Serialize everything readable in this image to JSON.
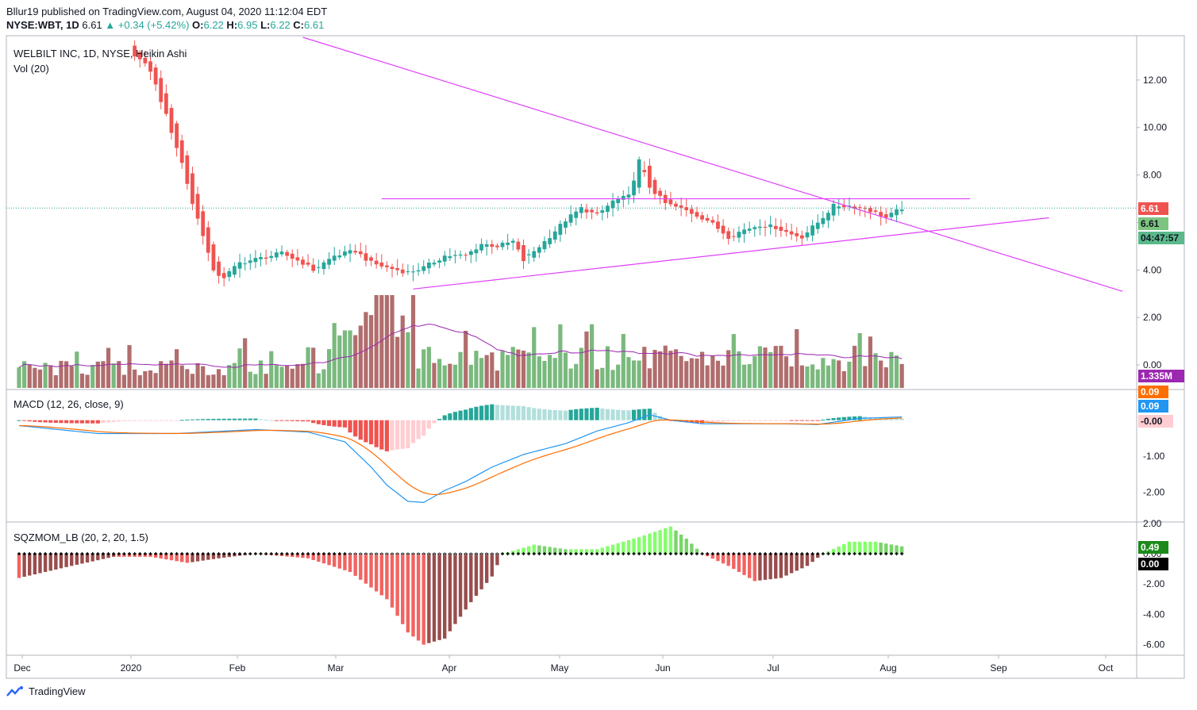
{
  "header": {
    "published": "Bllur19 published on TradingView.com, August 04, 2020 11:12:04 EDT",
    "symbol": "NYSE:WBT, 1D",
    "price": "6.61",
    "change": "▲ +0.34 (+5.42%)",
    "o_label": "O:",
    "o_val": "6.22",
    "h_label": "H:",
    "h_val": "6.95",
    "l_label": "L:",
    "l_val": "6.22",
    "c_label": "C:",
    "c_val": "6.61"
  },
  "legends": {
    "main": "WELBILT INC, 1D, NYSE, Heikin Ashi",
    "vol": "Vol (20)",
    "macd": "MACD (12, 26, close, 9)",
    "sqz": "SQZMOM_LB (20, 2, 20, 1.5)"
  },
  "footer": {
    "brand": "TradingView"
  },
  "colors": {
    "up": "#26a69a",
    "down": "#ef5350",
    "trend": "#e040fb",
    "vol_up": "#7ab97e",
    "vol_down": "#b16d6d",
    "vol_ma": "#9c27b0",
    "macd": "#2196f3",
    "signal": "#ff6d00"
  },
  "chart_data": [
    {
      "type": "candlestick",
      "name": "WELBILT INC",
      "x_ticks": [
        "Dec",
        "2020",
        "Feb",
        "Mar",
        "Apr",
        "May",
        "Jun",
        "Jul",
        "Aug",
        "Sep",
        "Oct"
      ],
      "y_ticks": [
        "12.00",
        "10.00",
        "8.00",
        "6.00",
        "4.00",
        "2.00",
        "0.00"
      ],
      "ylim": [
        -1,
        13.8
      ],
      "last_price": "6.61",
      "price_badges": [
        "6.61",
        "6.61",
        "04:47:57"
      ],
      "close_anchors": [
        [
          0,
          14.5
        ],
        [
          10,
          14.2
        ],
        [
          18,
          13.8
        ],
        [
          21,
          13.3
        ],
        [
          25,
          12.4
        ],
        [
          28,
          10.5
        ],
        [
          31,
          8.5
        ],
        [
          33,
          6.8
        ],
        [
          35,
          5.5
        ],
        [
          37,
          3.9
        ],
        [
          39,
          3.7
        ],
        [
          42,
          4.3
        ],
        [
          46,
          4.5
        ],
        [
          50,
          4.7
        ],
        [
          54,
          4.3
        ],
        [
          56,
          4.0
        ],
        [
          60,
          4.6
        ],
        [
          64,
          4.8
        ],
        [
          67,
          4.3
        ],
        [
          70,
          4.1
        ],
        [
          74,
          3.9
        ],
        [
          77,
          4.1
        ],
        [
          81,
          4.6
        ],
        [
          85,
          4.6
        ],
        [
          88,
          5.1
        ],
        [
          91,
          5.0
        ],
        [
          94,
          5.2
        ],
        [
          96,
          4.4
        ],
        [
          100,
          5.2
        ],
        [
          104,
          6.1
        ],
        [
          107,
          6.6
        ],
        [
          110,
          6.3
        ],
        [
          113,
          6.9
        ],
        [
          116,
          7.1
        ],
        [
          118,
          8.6
        ],
        [
          120,
          7.5
        ],
        [
          123,
          6.8
        ],
        [
          127,
          6.5
        ],
        [
          131,
          6.1
        ],
        [
          135,
          5.4
        ],
        [
          138,
          5.7
        ],
        [
          141,
          5.9
        ],
        [
          144,
          5.8
        ],
        [
          147,
          5.5
        ],
        [
          149,
          5.4
        ],
        [
          152,
          6.0
        ],
        [
          155,
          6.7
        ],
        [
          158,
          6.7
        ],
        [
          161,
          6.6
        ],
        [
          163,
          6.4
        ],
        [
          165,
          6.2
        ],
        [
          168,
          6.61
        ]
      ],
      "trendlines": [
        {
          "from": [
            54,
            13.8
          ],
          "to": [
            210,
            3.1
          ]
        },
        {
          "from": [
            69,
            7.0
          ],
          "to": [
            181,
            7.0
          ]
        },
        {
          "from": [
            75,
            3.2
          ],
          "to": [
            196,
            6.2
          ]
        }
      ]
    },
    {
      "type": "bar",
      "name": "Vol (20)",
      "badge": "1.335M"
    },
    {
      "type": "line",
      "name": "MACD (12, 26, close, 9)",
      "y_ticks": [
        "-1.00",
        "-2.00"
      ],
      "ylim": [
        -2.8,
        0.85
      ],
      "macd_anchors": [
        [
          0,
          -0.15
        ],
        [
          15,
          -0.37
        ],
        [
          30,
          -0.37
        ],
        [
          45,
          -0.26
        ],
        [
          55,
          -0.33
        ],
        [
          62,
          -0.6
        ],
        [
          67,
          -1.3
        ],
        [
          70,
          -1.8
        ],
        [
          74,
          -2.25
        ],
        [
          77,
          -2.28
        ],
        [
          81,
          -1.95
        ],
        [
          85,
          -1.7
        ],
        [
          90,
          -1.3
        ],
        [
          96,
          -0.95
        ],
        [
          104,
          -0.65
        ],
        [
          110,
          -0.3
        ],
        [
          116,
          -0.07
        ],
        [
          120,
          0.15
        ],
        [
          124,
          0.0
        ],
        [
          130,
          -0.1
        ],
        [
          140,
          -0.1
        ],
        [
          146,
          -0.1
        ],
        [
          152,
          -0.12
        ],
        [
          160,
          0.05
        ],
        [
          168,
          0.09
        ]
      ],
      "badges": [
        "0.09",
        "0.09",
        "-0.00"
      ]
    },
    {
      "type": "bar",
      "name": "SQZMOM_LB (20, 2, 20, 1.5)",
      "y_ticks": [
        "2.00",
        "0.00",
        "-2.00",
        "-4.00",
        "-6.00"
      ],
      "ylim": [
        -6.6,
        2.1
      ],
      "mom_anchors": [
        [
          0,
          -1.6
        ],
        [
          10,
          -0.8
        ],
        [
          18,
          -0.2
        ],
        [
          25,
          -0.2
        ],
        [
          32,
          -0.6
        ],
        [
          38,
          -0.3
        ],
        [
          45,
          0.0
        ],
        [
          55,
          -0.3
        ],
        [
          63,
          -1.2
        ],
        [
          70,
          -3.0
        ],
        [
          74,
          -5.2
        ],
        [
          77,
          -6.0
        ],
        [
          81,
          -5.6
        ],
        [
          86,
          -3.2
        ],
        [
          90,
          -1.5
        ],
        [
          92,
          0.0
        ],
        [
          98,
          0.6
        ],
        [
          104,
          0.3
        ],
        [
          110,
          0.3
        ],
        [
          118,
          1.1
        ],
        [
          124,
          1.8
        ],
        [
          127,
          1.0
        ],
        [
          130,
          0.0
        ],
        [
          135,
          -0.8
        ],
        [
          140,
          -1.8
        ],
        [
          145,
          -1.6
        ],
        [
          150,
          -0.8
        ],
        [
          153,
          0.0
        ],
        [
          158,
          0.8
        ],
        [
          163,
          0.8
        ],
        [
          168,
          0.49
        ]
      ],
      "badges": [
        "0.49",
        "0.00"
      ]
    }
  ]
}
